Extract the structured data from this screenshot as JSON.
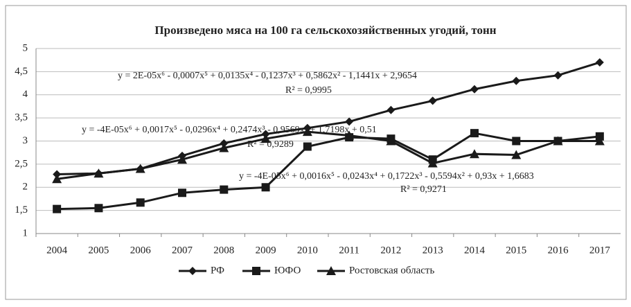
{
  "chart_data": {
    "type": "line",
    "title": "Произведено мяса на 100 га сельскохозяйственных угодий, тонн",
    "categories": [
      "2004",
      "2005",
      "2006",
      "2007",
      "2008",
      "2009",
      "2010",
      "2011",
      "2012",
      "2013",
      "2014",
      "2015",
      "2016",
      "2017"
    ],
    "series": [
      {
        "name": "РФ",
        "color": "#1a1a1a",
        "marker": "diamond",
        "values": [
          2.28,
          2.3,
          2.4,
          2.68,
          2.95,
          3.15,
          3.28,
          3.42,
          3.67,
          3.87,
          4.12,
          4.3,
          4.42,
          4.7
        ]
      },
      {
        "name": "ЮФО",
        "color": "#1a1a1a",
        "marker": "square",
        "values": [
          1.53,
          1.55,
          1.67,
          1.88,
          1.95,
          2.0,
          2.88,
          3.08,
          3.05,
          2.6,
          3.17,
          3.0,
          3.0,
          3.1
        ]
      },
      {
        "name": "Ростовская область",
        "color": "#1a1a1a",
        "marker": "triangle",
        "values": [
          2.18,
          2.3,
          2.4,
          2.6,
          2.85,
          3.05,
          3.2,
          3.12,
          3.0,
          2.52,
          2.72,
          2.7,
          3.0,
          3.0
        ]
      }
    ],
    "ylim": [
      1,
      5
    ],
    "yticks": [
      1,
      {
        "value": 1.5,
        "label": "1,5"
      },
      2,
      {
        "value": 2.5,
        "label": "2,5"
      },
      3,
      {
        "value": 3.5,
        "label": "3,5"
      },
      4,
      {
        "value": 4.5,
        "label": "4,5"
      },
      5
    ],
    "grid": true,
    "legend": "bottom",
    "annotations": [
      "y = 2E-05x⁶  - 0,0007x⁵  + 0,0135x⁴  - 0,1237x³  + 0,5862x²  - 1,1441x  + 2,9654",
      "R² = 0,9995",
      "y = -4E-05x⁶  + 0,0017x⁵  - 0,0296x⁴  + 0,2474x³  - 0,9569x²  + 1,7198x  + 0,51",
      "R² = 0,9289",
      "y = -4E-05x⁶  + 0,0016x⁵  - 0,0243x⁴  + 0,1722x³  - 0,5594x²  + 0,93x  + 1,6683",
      "R² = 0,9271"
    ]
  }
}
